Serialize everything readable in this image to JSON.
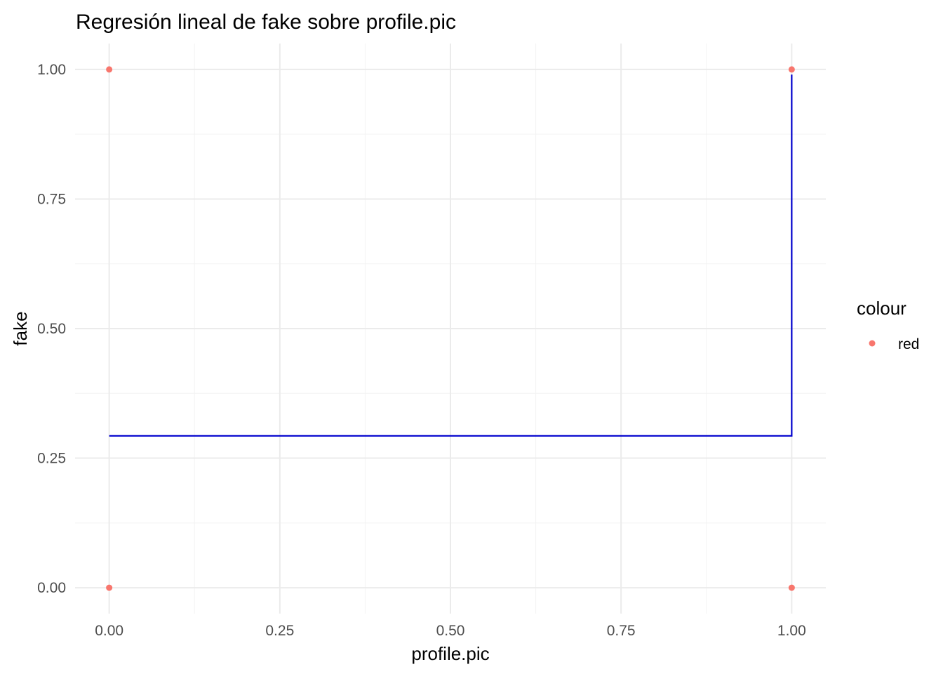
{
  "chart_data": {
    "type": "scatter",
    "title": "Regresión lineal de fake sobre profile.pic",
    "xlabel": "profile.pic",
    "ylabel": "fake",
    "xlim": [
      -0.05,
      1.05
    ],
    "ylim": [
      -0.05,
      1.05
    ],
    "x_ticks": [
      0,
      0.25,
      0.5,
      0.75,
      1
    ],
    "x_tick_labels": [
      "0.00",
      "0.25",
      "0.50",
      "0.75",
      "1.00"
    ],
    "y_ticks": [
      0,
      0.25,
      0.5,
      0.75,
      1
    ],
    "y_tick_labels": [
      "0.00",
      "0.25",
      "0.50",
      "0.75",
      "1.00"
    ],
    "grid": true,
    "legend": {
      "title": "colour",
      "position": "right",
      "entries": [
        {
          "label": "red",
          "color": "#F8766D"
        }
      ]
    },
    "points": {
      "x": [
        0,
        0,
        1,
        1
      ],
      "y": [
        1,
        0,
        1,
        0
      ],
      "color": "#F8766D"
    },
    "line": {
      "x": [
        0,
        1,
        1
      ],
      "y": [
        0.293,
        0.293,
        0.99
      ],
      "color": "#0000CD"
    }
  }
}
